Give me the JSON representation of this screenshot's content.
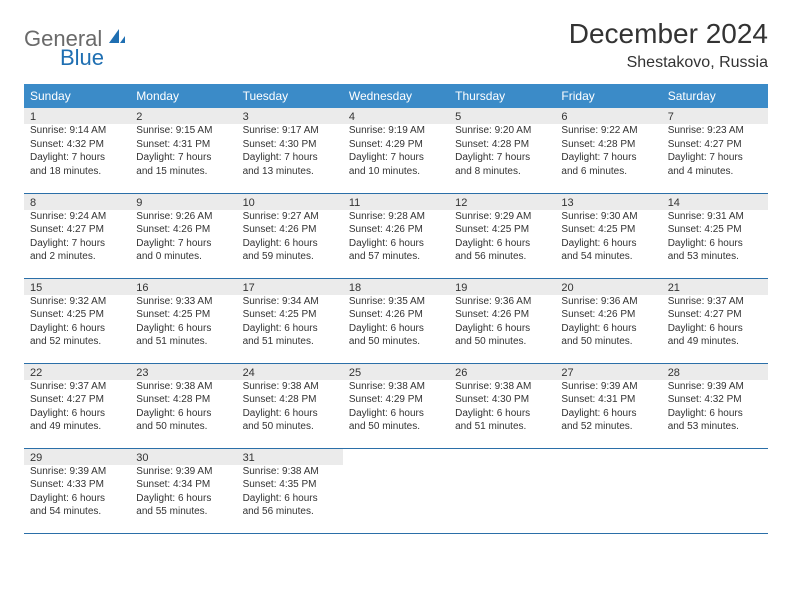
{
  "logo": {
    "text1": "General",
    "text2": "Blue"
  },
  "title": "December 2024",
  "subtitle": "Shestakovo, Russia",
  "colors": {
    "header_bg": "#3b8bc8",
    "daynum_bg": "#ebebeb",
    "row_divider": "#2b6fa8",
    "logo_gray": "#6a6a6a",
    "logo_blue": "#1f6fb2"
  },
  "day_headers": [
    "Sunday",
    "Monday",
    "Tuesday",
    "Wednesday",
    "Thursday",
    "Friday",
    "Saturday"
  ],
  "weeks": [
    [
      {
        "n": "1",
        "sunrise": "9:14 AM",
        "sunset": "4:32 PM",
        "daylight": "7 hours and 18 minutes."
      },
      {
        "n": "2",
        "sunrise": "9:15 AM",
        "sunset": "4:31 PM",
        "daylight": "7 hours and 15 minutes."
      },
      {
        "n": "3",
        "sunrise": "9:17 AM",
        "sunset": "4:30 PM",
        "daylight": "7 hours and 13 minutes."
      },
      {
        "n": "4",
        "sunrise": "9:19 AM",
        "sunset": "4:29 PM",
        "daylight": "7 hours and 10 minutes."
      },
      {
        "n": "5",
        "sunrise": "9:20 AM",
        "sunset": "4:28 PM",
        "daylight": "7 hours and 8 minutes."
      },
      {
        "n": "6",
        "sunrise": "9:22 AM",
        "sunset": "4:28 PM",
        "daylight": "7 hours and 6 minutes."
      },
      {
        "n": "7",
        "sunrise": "9:23 AM",
        "sunset": "4:27 PM",
        "daylight": "7 hours and 4 minutes."
      }
    ],
    [
      {
        "n": "8",
        "sunrise": "9:24 AM",
        "sunset": "4:27 PM",
        "daylight": "7 hours and 2 minutes."
      },
      {
        "n": "9",
        "sunrise": "9:26 AM",
        "sunset": "4:26 PM",
        "daylight": "7 hours and 0 minutes."
      },
      {
        "n": "10",
        "sunrise": "9:27 AM",
        "sunset": "4:26 PM",
        "daylight": "6 hours and 59 minutes."
      },
      {
        "n": "11",
        "sunrise": "9:28 AM",
        "sunset": "4:26 PM",
        "daylight": "6 hours and 57 minutes."
      },
      {
        "n": "12",
        "sunrise": "9:29 AM",
        "sunset": "4:25 PM",
        "daylight": "6 hours and 56 minutes."
      },
      {
        "n": "13",
        "sunrise": "9:30 AM",
        "sunset": "4:25 PM",
        "daylight": "6 hours and 54 minutes."
      },
      {
        "n": "14",
        "sunrise": "9:31 AM",
        "sunset": "4:25 PM",
        "daylight": "6 hours and 53 minutes."
      }
    ],
    [
      {
        "n": "15",
        "sunrise": "9:32 AM",
        "sunset": "4:25 PM",
        "daylight": "6 hours and 52 minutes."
      },
      {
        "n": "16",
        "sunrise": "9:33 AM",
        "sunset": "4:25 PM",
        "daylight": "6 hours and 51 minutes."
      },
      {
        "n": "17",
        "sunrise": "9:34 AM",
        "sunset": "4:25 PM",
        "daylight": "6 hours and 51 minutes."
      },
      {
        "n": "18",
        "sunrise": "9:35 AM",
        "sunset": "4:26 PM",
        "daylight": "6 hours and 50 minutes."
      },
      {
        "n": "19",
        "sunrise": "9:36 AM",
        "sunset": "4:26 PM",
        "daylight": "6 hours and 50 minutes."
      },
      {
        "n": "20",
        "sunrise": "9:36 AM",
        "sunset": "4:26 PM",
        "daylight": "6 hours and 50 minutes."
      },
      {
        "n": "21",
        "sunrise": "9:37 AM",
        "sunset": "4:27 PM",
        "daylight": "6 hours and 49 minutes."
      }
    ],
    [
      {
        "n": "22",
        "sunrise": "9:37 AM",
        "sunset": "4:27 PM",
        "daylight": "6 hours and 49 minutes."
      },
      {
        "n": "23",
        "sunrise": "9:38 AM",
        "sunset": "4:28 PM",
        "daylight": "6 hours and 50 minutes."
      },
      {
        "n": "24",
        "sunrise": "9:38 AM",
        "sunset": "4:28 PM",
        "daylight": "6 hours and 50 minutes."
      },
      {
        "n": "25",
        "sunrise": "9:38 AM",
        "sunset": "4:29 PM",
        "daylight": "6 hours and 50 minutes."
      },
      {
        "n": "26",
        "sunrise": "9:38 AM",
        "sunset": "4:30 PM",
        "daylight": "6 hours and 51 minutes."
      },
      {
        "n": "27",
        "sunrise": "9:39 AM",
        "sunset": "4:31 PM",
        "daylight": "6 hours and 52 minutes."
      },
      {
        "n": "28",
        "sunrise": "9:39 AM",
        "sunset": "4:32 PM",
        "daylight": "6 hours and 53 minutes."
      }
    ],
    [
      {
        "n": "29",
        "sunrise": "9:39 AM",
        "sunset": "4:33 PM",
        "daylight": "6 hours and 54 minutes."
      },
      {
        "n": "30",
        "sunrise": "9:39 AM",
        "sunset": "4:34 PM",
        "daylight": "6 hours and 55 minutes."
      },
      {
        "n": "31",
        "sunrise": "9:38 AM",
        "sunset": "4:35 PM",
        "daylight": "6 hours and 56 minutes."
      },
      null,
      null,
      null,
      null
    ]
  ]
}
